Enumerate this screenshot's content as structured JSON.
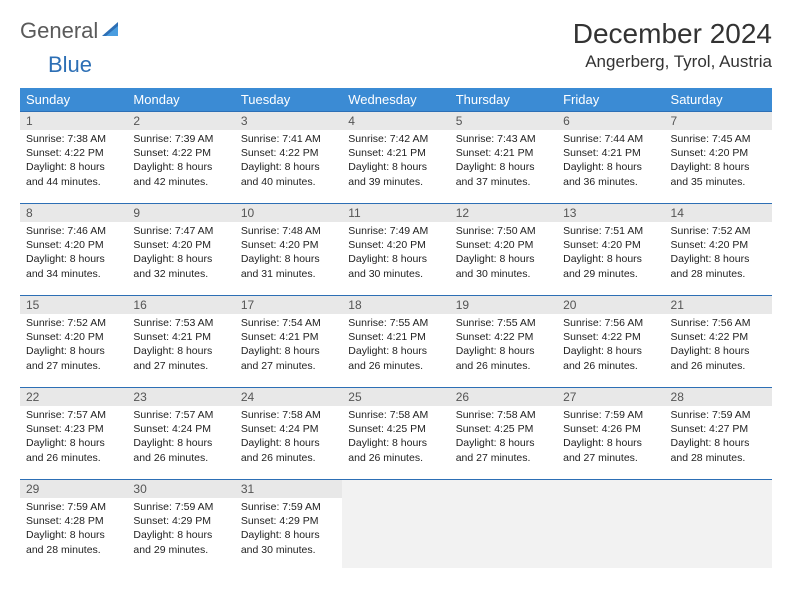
{
  "logo": {
    "general": "General",
    "blue": "Blue",
    "triangle_color": "#2d6fb5"
  },
  "header": {
    "month_title": "December 2024",
    "location": "Angerberg, Tyrol, Austria"
  },
  "colors": {
    "header_bg": "#3b8bd4",
    "header_text": "#ffffff",
    "border": "#2d6fb5",
    "daynum_bg": "#e8e8e8",
    "text": "#222222"
  },
  "weekdays": [
    "Sunday",
    "Monday",
    "Tuesday",
    "Wednesday",
    "Thursday",
    "Friday",
    "Saturday"
  ],
  "weeks": [
    [
      {
        "num": "1",
        "sunrise": "Sunrise: 7:38 AM",
        "sunset": "Sunset: 4:22 PM",
        "day1": "Daylight: 8 hours",
        "day2": "and 44 minutes."
      },
      {
        "num": "2",
        "sunrise": "Sunrise: 7:39 AM",
        "sunset": "Sunset: 4:22 PM",
        "day1": "Daylight: 8 hours",
        "day2": "and 42 minutes."
      },
      {
        "num": "3",
        "sunrise": "Sunrise: 7:41 AM",
        "sunset": "Sunset: 4:22 PM",
        "day1": "Daylight: 8 hours",
        "day2": "and 40 minutes."
      },
      {
        "num": "4",
        "sunrise": "Sunrise: 7:42 AM",
        "sunset": "Sunset: 4:21 PM",
        "day1": "Daylight: 8 hours",
        "day2": "and 39 minutes."
      },
      {
        "num": "5",
        "sunrise": "Sunrise: 7:43 AM",
        "sunset": "Sunset: 4:21 PM",
        "day1": "Daylight: 8 hours",
        "day2": "and 37 minutes."
      },
      {
        "num": "6",
        "sunrise": "Sunrise: 7:44 AM",
        "sunset": "Sunset: 4:21 PM",
        "day1": "Daylight: 8 hours",
        "day2": "and 36 minutes."
      },
      {
        "num": "7",
        "sunrise": "Sunrise: 7:45 AM",
        "sunset": "Sunset: 4:20 PM",
        "day1": "Daylight: 8 hours",
        "day2": "and 35 minutes."
      }
    ],
    [
      {
        "num": "8",
        "sunrise": "Sunrise: 7:46 AM",
        "sunset": "Sunset: 4:20 PM",
        "day1": "Daylight: 8 hours",
        "day2": "and 34 minutes."
      },
      {
        "num": "9",
        "sunrise": "Sunrise: 7:47 AM",
        "sunset": "Sunset: 4:20 PM",
        "day1": "Daylight: 8 hours",
        "day2": "and 32 minutes."
      },
      {
        "num": "10",
        "sunrise": "Sunrise: 7:48 AM",
        "sunset": "Sunset: 4:20 PM",
        "day1": "Daylight: 8 hours",
        "day2": "and 31 minutes."
      },
      {
        "num": "11",
        "sunrise": "Sunrise: 7:49 AM",
        "sunset": "Sunset: 4:20 PM",
        "day1": "Daylight: 8 hours",
        "day2": "and 30 minutes."
      },
      {
        "num": "12",
        "sunrise": "Sunrise: 7:50 AM",
        "sunset": "Sunset: 4:20 PM",
        "day1": "Daylight: 8 hours",
        "day2": "and 30 minutes."
      },
      {
        "num": "13",
        "sunrise": "Sunrise: 7:51 AM",
        "sunset": "Sunset: 4:20 PM",
        "day1": "Daylight: 8 hours",
        "day2": "and 29 minutes."
      },
      {
        "num": "14",
        "sunrise": "Sunrise: 7:52 AM",
        "sunset": "Sunset: 4:20 PM",
        "day1": "Daylight: 8 hours",
        "day2": "and 28 minutes."
      }
    ],
    [
      {
        "num": "15",
        "sunrise": "Sunrise: 7:52 AM",
        "sunset": "Sunset: 4:20 PM",
        "day1": "Daylight: 8 hours",
        "day2": "and 27 minutes."
      },
      {
        "num": "16",
        "sunrise": "Sunrise: 7:53 AM",
        "sunset": "Sunset: 4:21 PM",
        "day1": "Daylight: 8 hours",
        "day2": "and 27 minutes."
      },
      {
        "num": "17",
        "sunrise": "Sunrise: 7:54 AM",
        "sunset": "Sunset: 4:21 PM",
        "day1": "Daylight: 8 hours",
        "day2": "and 27 minutes."
      },
      {
        "num": "18",
        "sunrise": "Sunrise: 7:55 AM",
        "sunset": "Sunset: 4:21 PM",
        "day1": "Daylight: 8 hours",
        "day2": "and 26 minutes."
      },
      {
        "num": "19",
        "sunrise": "Sunrise: 7:55 AM",
        "sunset": "Sunset: 4:22 PM",
        "day1": "Daylight: 8 hours",
        "day2": "and 26 minutes."
      },
      {
        "num": "20",
        "sunrise": "Sunrise: 7:56 AM",
        "sunset": "Sunset: 4:22 PM",
        "day1": "Daylight: 8 hours",
        "day2": "and 26 minutes."
      },
      {
        "num": "21",
        "sunrise": "Sunrise: 7:56 AM",
        "sunset": "Sunset: 4:22 PM",
        "day1": "Daylight: 8 hours",
        "day2": "and 26 minutes."
      }
    ],
    [
      {
        "num": "22",
        "sunrise": "Sunrise: 7:57 AM",
        "sunset": "Sunset: 4:23 PM",
        "day1": "Daylight: 8 hours",
        "day2": "and 26 minutes."
      },
      {
        "num": "23",
        "sunrise": "Sunrise: 7:57 AM",
        "sunset": "Sunset: 4:24 PM",
        "day1": "Daylight: 8 hours",
        "day2": "and 26 minutes."
      },
      {
        "num": "24",
        "sunrise": "Sunrise: 7:58 AM",
        "sunset": "Sunset: 4:24 PM",
        "day1": "Daylight: 8 hours",
        "day2": "and 26 minutes."
      },
      {
        "num": "25",
        "sunrise": "Sunrise: 7:58 AM",
        "sunset": "Sunset: 4:25 PM",
        "day1": "Daylight: 8 hours",
        "day2": "and 26 minutes."
      },
      {
        "num": "26",
        "sunrise": "Sunrise: 7:58 AM",
        "sunset": "Sunset: 4:25 PM",
        "day1": "Daylight: 8 hours",
        "day2": "and 27 minutes."
      },
      {
        "num": "27",
        "sunrise": "Sunrise: 7:59 AM",
        "sunset": "Sunset: 4:26 PM",
        "day1": "Daylight: 8 hours",
        "day2": "and 27 minutes."
      },
      {
        "num": "28",
        "sunrise": "Sunrise: 7:59 AM",
        "sunset": "Sunset: 4:27 PM",
        "day1": "Daylight: 8 hours",
        "day2": "and 28 minutes."
      }
    ],
    [
      {
        "num": "29",
        "sunrise": "Sunrise: 7:59 AM",
        "sunset": "Sunset: 4:28 PM",
        "day1": "Daylight: 8 hours",
        "day2": "and 28 minutes."
      },
      {
        "num": "30",
        "sunrise": "Sunrise: 7:59 AM",
        "sunset": "Sunset: 4:29 PM",
        "day1": "Daylight: 8 hours",
        "day2": "and 29 minutes."
      },
      {
        "num": "31",
        "sunrise": "Sunrise: 7:59 AM",
        "sunset": "Sunset: 4:29 PM",
        "day1": "Daylight: 8 hours",
        "day2": "and 30 minutes."
      },
      {
        "empty": true
      },
      {
        "empty": true
      },
      {
        "empty": true
      },
      {
        "empty": true
      }
    ]
  ]
}
